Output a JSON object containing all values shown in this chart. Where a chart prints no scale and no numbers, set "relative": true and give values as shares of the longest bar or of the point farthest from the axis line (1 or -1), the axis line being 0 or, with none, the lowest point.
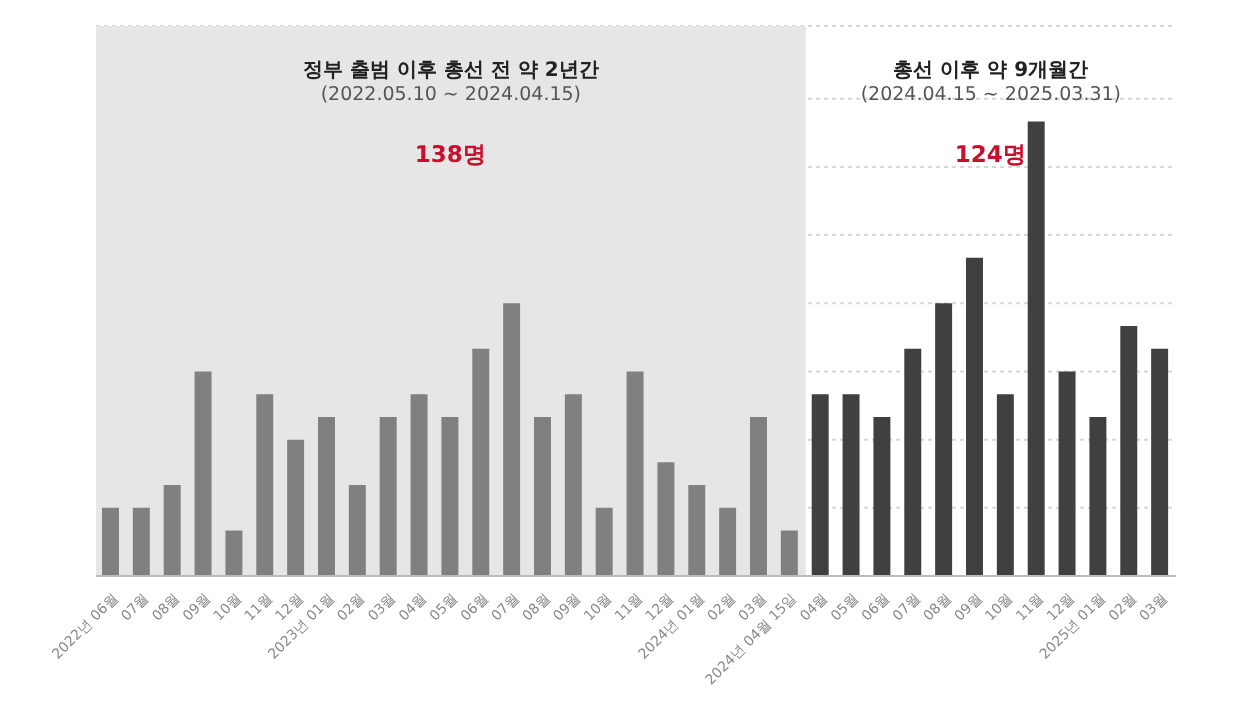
{
  "chart_data": {
    "type": "bar",
    "relative": true,
    "categories": [
      "2022년 06월",
      "07월",
      "08월",
      "09월",
      "10월",
      "11월",
      "12월",
      "2023년 01월",
      "02월",
      "03월",
      "04월",
      "05월",
      "06월",
      "07월",
      "08월",
      "09월",
      "10월",
      "11월",
      "12월",
      "2024년 01월",
      "02월",
      "03월",
      "2024년 04월 15일",
      "04월",
      "05월",
      "06월",
      "07월",
      "08월",
      "09월",
      "10월",
      "11월",
      "12월",
      "2025년 01월",
      "02월",
      "03월"
    ],
    "values": [
      0.15,
      0.15,
      0.2,
      0.45,
      0.1,
      0.4,
      0.3,
      0.35,
      0.2,
      0.35,
      0.4,
      0.35,
      0.5,
      0.6,
      0.35,
      0.4,
      0.15,
      0.45,
      0.25,
      0.2,
      0.15,
      0.35,
      0.1,
      0.4,
      0.4,
      0.35,
      0.5,
      0.6,
      0.7,
      0.4,
      1,
      0.45,
      0.35,
      0.55,
      0.5
    ],
    "colors": [
      "#808080",
      "#808080",
      "#808080",
      "#808080",
      "#808080",
      "#808080",
      "#808080",
      "#808080",
      "#808080",
      "#808080",
      "#808080",
      "#808080",
      "#808080",
      "#808080",
      "#808080",
      "#808080",
      "#808080",
      "#808080",
      "#808080",
      "#808080",
      "#808080",
      "#808080",
      "#808080",
      "#404040",
      "#404040",
      "#404040",
      "#404040",
      "#404040",
      "#404040",
      "#404040",
      "#404040",
      "#404040",
      "#404040",
      "#404040",
      "#404040"
    ],
    "bands": [
      {
        "axis": "x",
        "from": "2022년 06월",
        "to": "2024년 04월 15일",
        "color": "#e6e6e6"
      }
    ],
    "annotations": [
      "정부 출범 이후 총선 전 약 2년간",
      "(2022.05.10 ~ 2024.04.15)",
      "138명",
      "총선 이후 약 9개월간",
      "(2024.04.15 ~ 2025.03.31)",
      "124명"
    ],
    "grid": "y"
  }
}
